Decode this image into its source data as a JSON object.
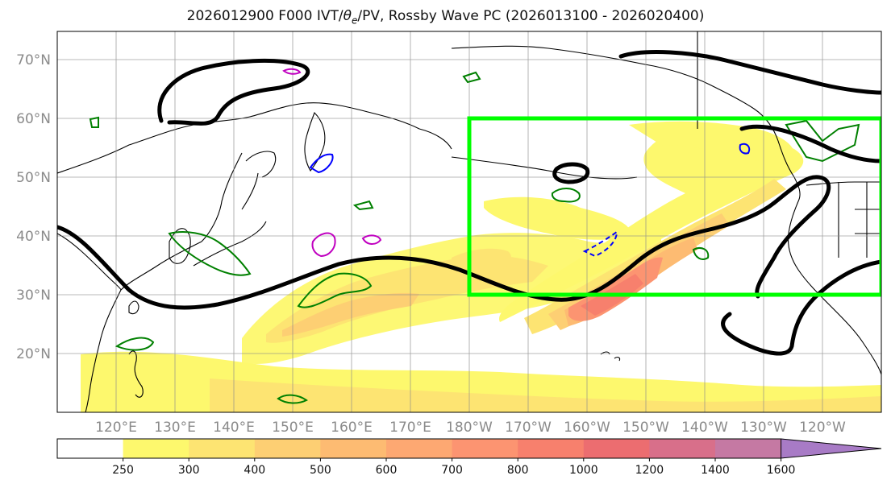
{
  "title": {
    "prefix": "2026012900 F000 IVT/",
    "theta_symbol": "θ",
    "theta_sub": "e",
    "suffix": "/PV, Rossby Wave PC (2026013100 - 2026020400)"
  },
  "map": {
    "projection": "PlateCarree",
    "lon_range": [
      110,
      250
    ],
    "lat_range": [
      10,
      75
    ],
    "lat_labels": [
      "20°N",
      "30°N",
      "40°N",
      "50°N",
      "60°N",
      "70°N"
    ],
    "lat_values": [
      20,
      30,
      40,
      50,
      60,
      70
    ],
    "lon_labels": [
      "120°E",
      "130°E",
      "140°E",
      "150°E",
      "160°E",
      "170°E",
      "180°W",
      "170°W",
      "160°W",
      "150°W",
      "140°W",
      "130°W",
      "120°W"
    ],
    "lon_values": [
      120,
      130,
      140,
      150,
      160,
      170,
      180,
      190,
      200,
      210,
      220,
      230,
      240
    ],
    "region_box": {
      "lon": [
        180,
        250
      ],
      "lat": [
        30,
        60
      ],
      "color": "#00ff00"
    }
  },
  "colorbar": {
    "levels": [
      250,
      300,
      400,
      500,
      600,
      700,
      800,
      1000,
      1200,
      1400,
      1600
    ],
    "labels": [
      "250",
      "300",
      "400",
      "500",
      "600",
      "700",
      "800",
      "1000",
      "1200",
      "1400",
      "1600"
    ],
    "colors": [
      "#ffffff",
      "#fdf86d",
      "#fde472",
      "#fdcf73",
      "#fdbb72",
      "#fda872",
      "#fc9471",
      "#f7806d",
      "#ec6d70",
      "#d86f8a",
      "#c579a3",
      "#a87bc6"
    ],
    "extend": "max"
  },
  "colors": {
    "theta_e_contour": "#000000",
    "pv_positive": "#008000",
    "pv_negative": "#0000ff",
    "pv_high": "#c000c0",
    "coastline": "#000000"
  }
}
